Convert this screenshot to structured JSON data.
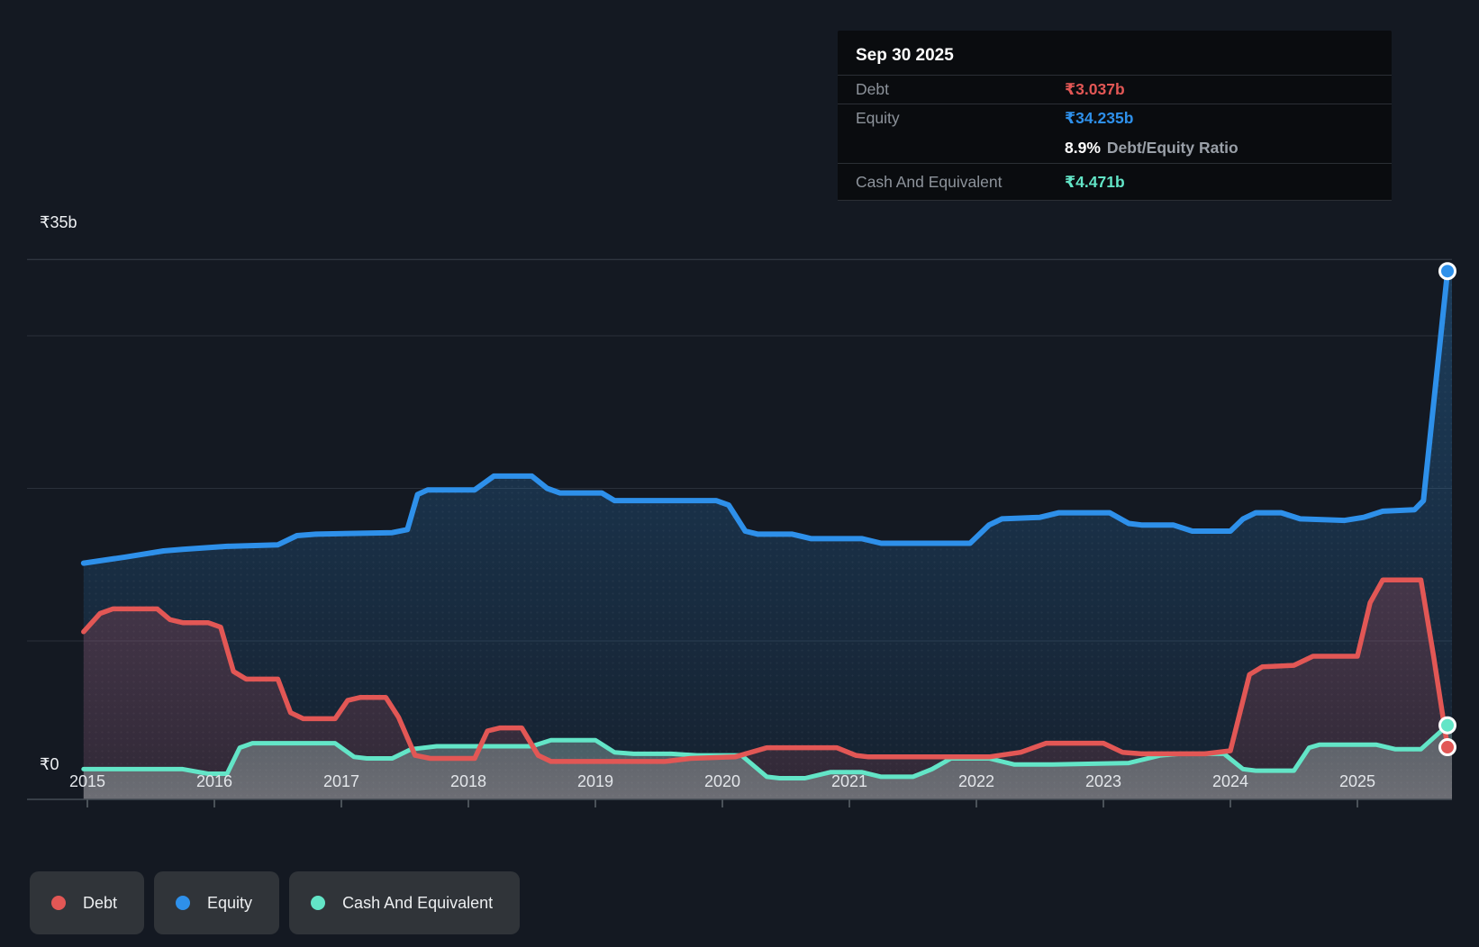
{
  "tooltip": {
    "title": "Sep 30 2025",
    "rows": [
      {
        "label": "Debt",
        "value": "₹3.037b",
        "color_key": "debt"
      },
      {
        "label": "Equity",
        "value": "₹34.235b",
        "color_key": "equity"
      },
      {
        "type": "ratio",
        "bold": "8.9%",
        "text": "Debt/Equity Ratio"
      },
      {
        "label": "Cash And Equivalent",
        "value": "₹4.471b",
        "color_key": "cash"
      }
    ]
  },
  "legend": [
    {
      "label": "Debt",
      "color_key": "debt"
    },
    {
      "label": "Equity",
      "color_key": "equity"
    },
    {
      "label": "Cash And Equivalent",
      "color_key": "cash"
    }
  ],
  "colors": {
    "debt": "#e25755",
    "equity": "#2e90ea",
    "cash": "#63e5c7",
    "background": "#141922",
    "tooltip_bg": "#0a0c0f",
    "chip_bg": "#303439",
    "grid": "#2a303a",
    "grid_top": "#39404a",
    "axis": "#454c54",
    "tick": "#4a5158",
    "text_muted": "#8d939b"
  },
  "chart_data": {
    "type": "area",
    "title": "Debt to Equity history",
    "currency_unit": "₹ billions",
    "y_axis": {
      "top_label": "₹35b",
      "zero_label": "₹0",
      "max": 35,
      "min": 0,
      "gridline_values": [
        35,
        30,
        20,
        10
      ]
    },
    "x_axis_labels": [
      "2015",
      "2016",
      "2017",
      "2018",
      "2019",
      "2020",
      "2021",
      "2022",
      "2023",
      "2024",
      "2025"
    ],
    "x_domain": [
      2015,
      2025.75
    ],
    "legend_position": "bottom",
    "grid": true,
    "series": [
      {
        "name": "Equity",
        "color_key": "equity",
        "end_value_label": "₹34.235b",
        "points": [
          [
            2014.97,
            15.1
          ],
          [
            2015.3,
            15.5
          ],
          [
            2015.6,
            15.9
          ],
          [
            2015.75,
            16.0
          ],
          [
            2016.1,
            16.2
          ],
          [
            2016.5,
            16.3
          ],
          [
            2016.65,
            16.9
          ],
          [
            2016.8,
            17.0
          ],
          [
            2017.4,
            17.1
          ],
          [
            2017.52,
            17.3
          ],
          [
            2017.6,
            19.6
          ],
          [
            2017.68,
            19.9
          ],
          [
            2018.05,
            19.9
          ],
          [
            2018.2,
            20.8
          ],
          [
            2018.5,
            20.8
          ],
          [
            2018.62,
            20.0
          ],
          [
            2018.72,
            19.7
          ],
          [
            2019.05,
            19.7
          ],
          [
            2019.15,
            19.2
          ],
          [
            2019.95,
            19.2
          ],
          [
            2020.05,
            18.9
          ],
          [
            2020.18,
            17.2
          ],
          [
            2020.28,
            17.0
          ],
          [
            2020.55,
            17.0
          ],
          [
            2020.7,
            16.7
          ],
          [
            2021.1,
            16.7
          ],
          [
            2021.25,
            16.4
          ],
          [
            2021.95,
            16.4
          ],
          [
            2022.1,
            17.6
          ],
          [
            2022.2,
            18.0
          ],
          [
            2022.5,
            18.1
          ],
          [
            2022.65,
            18.4
          ],
          [
            2023.05,
            18.4
          ],
          [
            2023.2,
            17.7
          ],
          [
            2023.3,
            17.6
          ],
          [
            2023.55,
            17.6
          ],
          [
            2023.7,
            17.2
          ],
          [
            2024.0,
            17.2
          ],
          [
            2024.1,
            18.0
          ],
          [
            2024.2,
            18.4
          ],
          [
            2024.4,
            18.4
          ],
          [
            2024.55,
            18.0
          ],
          [
            2024.9,
            17.9
          ],
          [
            2025.05,
            18.1
          ],
          [
            2025.2,
            18.5
          ],
          [
            2025.45,
            18.6
          ],
          [
            2025.52,
            19.2
          ],
          [
            2025.71,
            34.235
          ]
        ]
      },
      {
        "name": "Debt",
        "color_key": "debt",
        "end_value_label": "₹3.037b",
        "points": [
          [
            2014.97,
            10.6
          ],
          [
            2015.1,
            11.8
          ],
          [
            2015.2,
            12.1
          ],
          [
            2015.55,
            12.1
          ],
          [
            2015.65,
            11.4
          ],
          [
            2015.75,
            11.2
          ],
          [
            2015.95,
            11.2
          ],
          [
            2016.05,
            10.9
          ],
          [
            2016.15,
            8.0
          ],
          [
            2016.25,
            7.5
          ],
          [
            2016.5,
            7.5
          ],
          [
            2016.6,
            5.3
          ],
          [
            2016.7,
            4.9
          ],
          [
            2016.95,
            4.9
          ],
          [
            2017.05,
            6.1
          ],
          [
            2017.15,
            6.3
          ],
          [
            2017.35,
            6.3
          ],
          [
            2017.45,
            5.0
          ],
          [
            2017.58,
            2.5
          ],
          [
            2017.7,
            2.3
          ],
          [
            2018.05,
            2.3
          ],
          [
            2018.15,
            4.1
          ],
          [
            2018.25,
            4.3
          ],
          [
            2018.42,
            4.3
          ],
          [
            2018.55,
            2.5
          ],
          [
            2018.65,
            2.1
          ],
          [
            2019.55,
            2.1
          ],
          [
            2019.75,
            2.3
          ],
          [
            2020.1,
            2.4
          ],
          [
            2020.35,
            3.0
          ],
          [
            2020.9,
            3.0
          ],
          [
            2021.05,
            2.5
          ],
          [
            2021.15,
            2.4
          ],
          [
            2022.1,
            2.4
          ],
          [
            2022.35,
            2.7
          ],
          [
            2022.55,
            3.3
          ],
          [
            2023.0,
            3.3
          ],
          [
            2023.15,
            2.7
          ],
          [
            2023.3,
            2.6
          ],
          [
            2023.8,
            2.6
          ],
          [
            2024.0,
            2.8
          ],
          [
            2024.15,
            7.8
          ],
          [
            2024.25,
            8.3
          ],
          [
            2024.5,
            8.4
          ],
          [
            2024.65,
            9.0
          ],
          [
            2025.0,
            9.0
          ],
          [
            2025.1,
            12.5
          ],
          [
            2025.2,
            14.0
          ],
          [
            2025.5,
            14.0
          ],
          [
            2025.6,
            9.0
          ],
          [
            2025.71,
            3.037
          ]
        ]
      },
      {
        "name": "Cash And Equivalent",
        "color_key": "cash",
        "end_value_label": "₹4.471b",
        "points": [
          [
            2014.97,
            1.6
          ],
          [
            2015.75,
            1.6
          ],
          [
            2015.95,
            1.3
          ],
          [
            2016.1,
            1.3
          ],
          [
            2016.2,
            3.0
          ],
          [
            2016.3,
            3.3
          ],
          [
            2016.95,
            3.3
          ],
          [
            2017.1,
            2.4
          ],
          [
            2017.2,
            2.3
          ],
          [
            2017.4,
            2.3
          ],
          [
            2017.55,
            2.9
          ],
          [
            2017.75,
            3.1
          ],
          [
            2018.5,
            3.1
          ],
          [
            2018.65,
            3.5
          ],
          [
            2019.0,
            3.5
          ],
          [
            2019.15,
            2.7
          ],
          [
            2019.3,
            2.6
          ],
          [
            2019.6,
            2.6
          ],
          [
            2019.8,
            2.5
          ],
          [
            2020.15,
            2.5
          ],
          [
            2020.35,
            1.1
          ],
          [
            2020.45,
            1.0
          ],
          [
            2020.65,
            1.0
          ],
          [
            2020.85,
            1.4
          ],
          [
            2021.1,
            1.4
          ],
          [
            2021.25,
            1.1
          ],
          [
            2021.5,
            1.1
          ],
          [
            2021.65,
            1.6
          ],
          [
            2021.8,
            2.3
          ],
          [
            2022.1,
            2.3
          ],
          [
            2022.3,
            1.9
          ],
          [
            2022.6,
            1.9
          ],
          [
            2023.2,
            2.0
          ],
          [
            2023.45,
            2.5
          ],
          [
            2023.6,
            2.6
          ],
          [
            2023.95,
            2.6
          ],
          [
            2024.1,
            1.6
          ],
          [
            2024.2,
            1.5
          ],
          [
            2024.5,
            1.5
          ],
          [
            2024.62,
            3.0
          ],
          [
            2024.7,
            3.2
          ],
          [
            2025.15,
            3.2
          ],
          [
            2025.3,
            2.9
          ],
          [
            2025.5,
            2.9
          ],
          [
            2025.71,
            4.471
          ]
        ]
      }
    ]
  }
}
